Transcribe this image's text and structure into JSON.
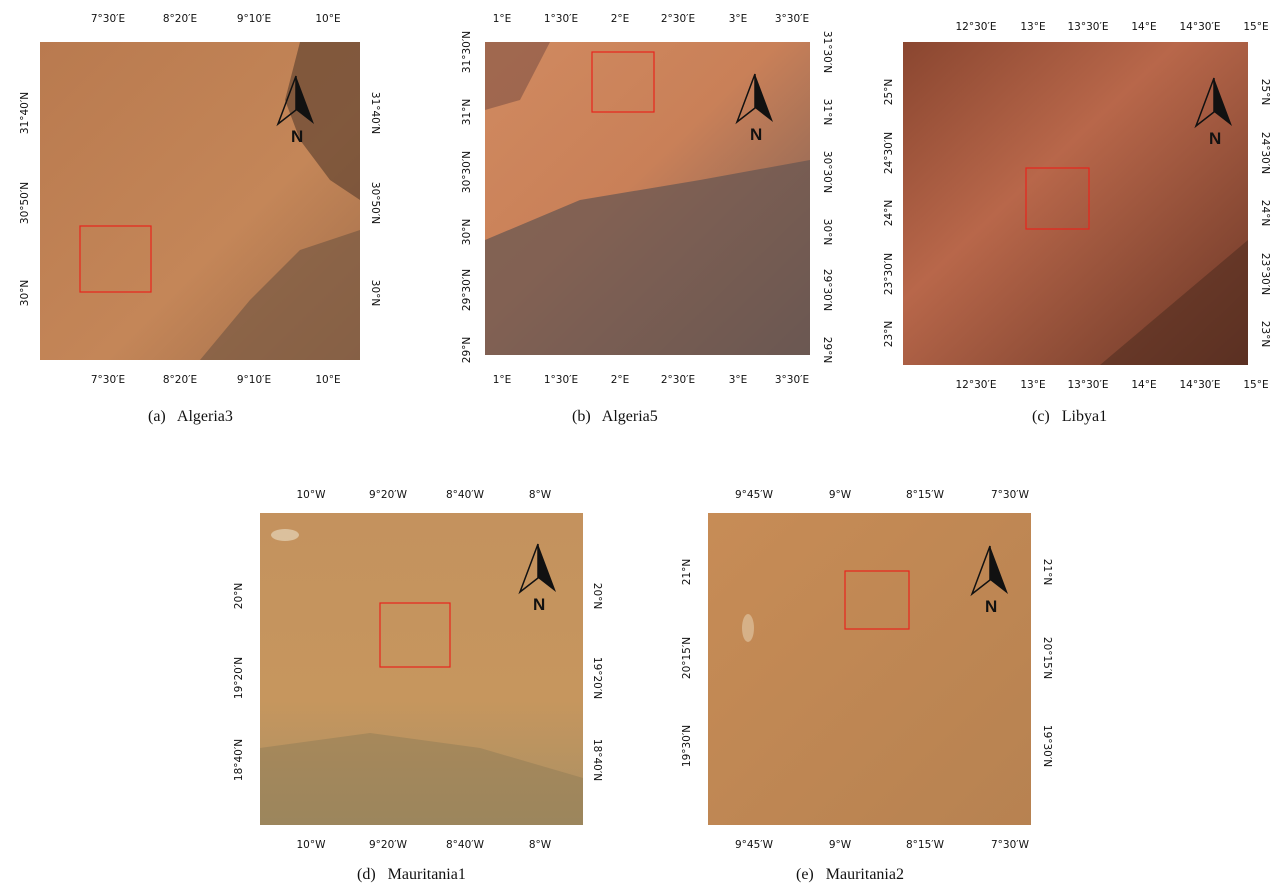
{
  "panels": [
    {
      "id": "a",
      "caption_prefix": "(a)",
      "caption_name": "Algeria3",
      "top_ticks": [
        "7°30′E",
        "8°20′E",
        "9°10′E",
        "10°E"
      ],
      "bottom_ticks": [
        "7°30′E",
        "8°20′E",
        "9°10′E",
        "10°E"
      ],
      "left_ticks": [
        "31°40′N",
        "30°50′N",
        "30°N"
      ],
      "right_ticks": [
        "31°40′N",
        "30°50′N",
        "30°N"
      ],
      "north_label": "N",
      "colors": {
        "base": "#c08255",
        "light": "#cc9063",
        "dark": "#6b4a34",
        "mid": "#98694a"
      }
    },
    {
      "id": "b",
      "caption_prefix": "(b)",
      "caption_name": "Algeria5",
      "top_ticks": [
        "1°E",
        "1°30′E",
        "2°E",
        "2°30′E",
        "3°E",
        "3°30′E"
      ],
      "bottom_ticks": [
        "1°E",
        "1°30′E",
        "2°E",
        "2°30′E",
        "3°E",
        "3°30′E"
      ],
      "left_ticks": [
        "31°30′N",
        "31°N",
        "30°30′N",
        "30°N",
        "29°30′N",
        "29°N"
      ],
      "right_ticks": [
        "31°30′N",
        "31°N",
        "30°30′N",
        "30°N",
        "29°30′N",
        "29°N"
      ],
      "north_label": "N",
      "colors": {
        "base": "#c98058",
        "light": "#dc9366",
        "dark": "#5e4a44",
        "mid": "#977567"
      }
    },
    {
      "id": "c",
      "caption_prefix": "(c)",
      "caption_name": "Libya1",
      "top_ticks": [
        "12°30′E",
        "13°E",
        "13°30′E",
        "14°E",
        "14°30′E",
        "15°E"
      ],
      "bottom_ticks": [
        "12°30′E",
        "13°E",
        "13°30′E",
        "14°E",
        "14°30′E",
        "15°E"
      ],
      "left_ticks": [
        "25°N",
        "24°30′N",
        "24°N",
        "23°30′N",
        "23°N"
      ],
      "right_ticks": [
        "25°N",
        "24°30′N",
        "24°N",
        "23°30′N",
        "23°N"
      ],
      "north_label": "N",
      "colors": {
        "base": "#a85a3a",
        "light": "#c2704a",
        "dark": "#5a3022",
        "mid": "#8a4a30"
      }
    },
    {
      "id": "d",
      "caption_prefix": "(d)",
      "caption_name": "Mauritania1",
      "top_ticks": [
        "10°W",
        "9°20′W",
        "8°40′W",
        "8°W"
      ],
      "bottom_ticks": [
        "10°W",
        "9°20′W",
        "8°40′W",
        "8°W"
      ],
      "left_ticks": [
        "20°N",
        "19°20′N",
        "18°40′N"
      ],
      "right_ticks": [
        "20°N",
        "19°20′N",
        "18°40′N"
      ],
      "north_label": "N",
      "colors": {
        "base": "#c8955c",
        "light": "#d9ad7a",
        "dark": "#8a7550",
        "mid": "#a88a5e"
      }
    },
    {
      "id": "e",
      "caption_prefix": "(e)",
      "caption_name": "Mauritania2",
      "top_ticks": [
        "9°45′W",
        "9°W",
        "8°15′W",
        "7°30′W"
      ],
      "bottom_ticks": [
        "9°45′W",
        "9°W",
        "8°15′W",
        "7°30′W"
      ],
      "left_ticks": [
        "21°N",
        "20°15′N",
        "19°30′N"
      ],
      "right_ticks": [
        "21°N",
        "20°15′N",
        "19°30′N"
      ],
      "north_label": "N",
      "colors": {
        "base": "#c48a55",
        "light": "#d39c66",
        "dark": "#9a7448",
        "mid": "#b38253"
      }
    }
  ]
}
